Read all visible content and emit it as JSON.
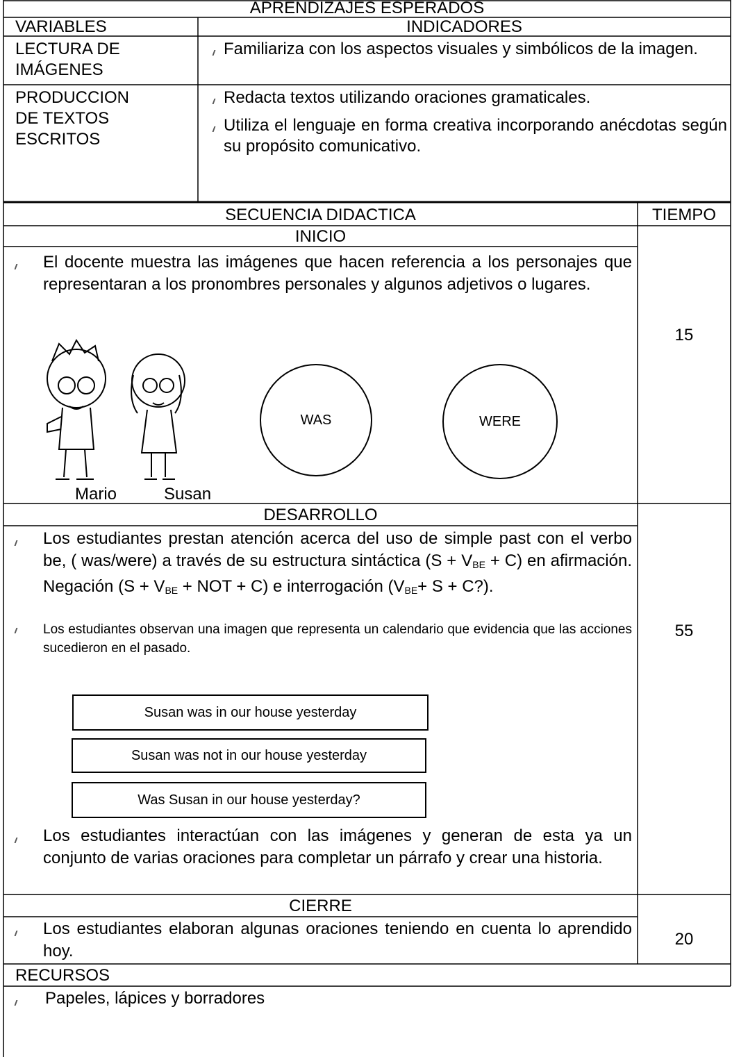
{
  "header": {
    "title": "APRENDIZAJES ESPERADOS"
  },
  "variables_table": {
    "headers": [
      "VARIABLES",
      "INDICADORES"
    ],
    "rows": [
      {
        "variable": [
          "LECTURA DE",
          "IMÁGENES"
        ],
        "indicators": [
          "Familiariza con los aspectos visuales y simbólicos de la imagen."
        ]
      },
      {
        "variable": [
          "PRODUCCION",
          "DE TEXTOS",
          "ESCRITOS"
        ],
        "indicators": [
          "Redacta textos utilizando oraciones gramaticales.",
          "Utiliza el lenguaje en forma creativa incorporando anécdotas según su propósito comunicativo."
        ]
      }
    ]
  },
  "sequence": {
    "headers": [
      "SECUENCIA DIDACTICA",
      "TIEMPO"
    ],
    "phases": [
      {
        "title": "INICIO",
        "time": 15,
        "items": [
          "El docente muestra las imágenes que hacen referencia a los personajes que representaran a los pronombres personales y algunos adjetivos o lugares."
        ],
        "characters": [
          "Mario",
          "Susan"
        ],
        "circles": [
          "WAS",
          "WERE"
        ]
      },
      {
        "title": "DESARROLLO",
        "time": 55,
        "items": [
          {
            "runs": [
              "Los estudiantes prestan atención acerca del uso de simple past con el verbo be, ( was/were) a través de su estructura sintáctica (S + V",
              {
                "sub": "BE"
              },
              " + C) en afirmación. Negación (S + V",
              {
                "sub": "BE"
              },
              " + NOT + C) e interrogación (V",
              {
                "sub": "BE"
              },
              "+ S + C?)."
            ]
          },
          "Los estudiantes observan una imagen que representa un calendario que evidencia que las acciones sucedieron en el pasado.",
          "Los estudiantes interactúan con las imágenes y generan de esta ya un conjunto de varias oraciones para completar un párrafo y crear una historia."
        ],
        "sentences": [
          "Susan was in our house yesterday",
          "Susan was not in our house yesterday",
          "Was Susan in our house yesterday?"
        ]
      },
      {
        "title": "CIERRE",
        "time": 20,
        "items": [
          "Los estudiantes elaboran algunas oraciones teniendo en cuenta lo aprendido hoy."
        ]
      }
    ]
  },
  "resources": {
    "title": "RECURSOS",
    "items": [
      "Papeles, lápices y borradores"
    ]
  }
}
